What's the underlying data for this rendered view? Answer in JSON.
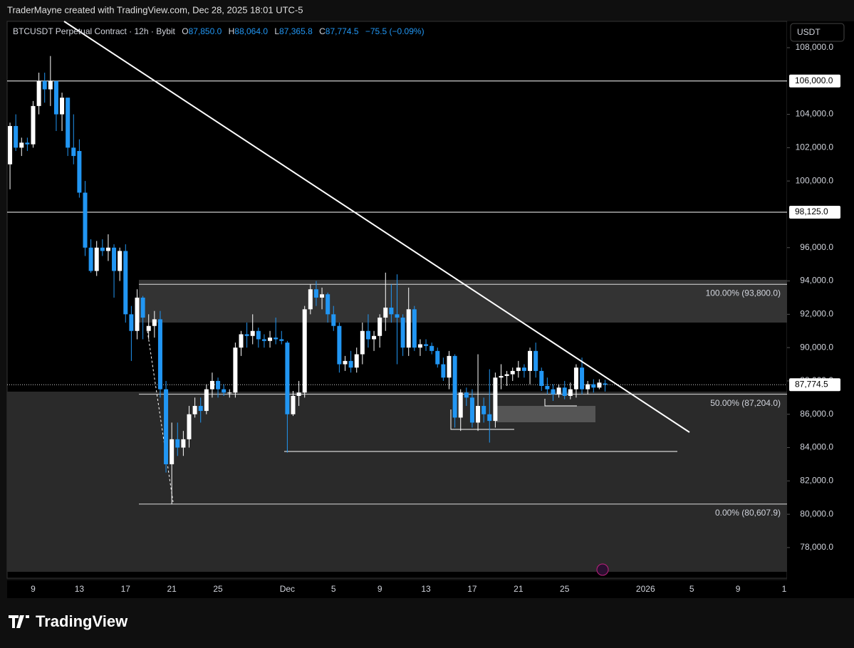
{
  "header": {
    "credit": "TraderMayne created with TradingView.com, Dec 28, 2025 18:01 UTC-5",
    "symbol": "BTCUSDT Perpetual Contract · 12h · Bybit",
    "legend": {
      "o_key": "O",
      "open": "87,850.0",
      "h_key": "H",
      "high": "88,064.0",
      "l_key": "L",
      "low": "87,365.8",
      "c_key": "C",
      "close": "87,774.5",
      "change": "−75.5 (−0.09%)"
    },
    "currency": "USDT"
  },
  "footer": {
    "brand": "TradingView"
  },
  "chart_data": {
    "type": "candlestick",
    "categories": [
      null,
      null,
      null,
      null,
      "9",
      null,
      null,
      null,
      null,
      null,
      null,
      null,
      "13",
      null,
      null,
      null,
      null,
      null,
      null,
      null,
      "17",
      null,
      null,
      null,
      null,
      null,
      null,
      null,
      "21",
      null,
      null,
      null,
      null,
      null,
      null,
      null,
      "25",
      null,
      null,
      null,
      null,
      null,
      null,
      null,
      null,
      null,
      null,
      null,
      "Dec",
      null,
      null,
      null,
      null,
      null,
      null,
      null,
      "5",
      null,
      null,
      null,
      null,
      null,
      null,
      null,
      "9",
      null,
      null,
      null,
      null,
      null,
      null,
      null,
      "13",
      null,
      null,
      null,
      null,
      null,
      null,
      null,
      "17",
      null,
      null,
      null,
      null,
      null,
      null,
      null,
      "21",
      null,
      null,
      null,
      null,
      null,
      null,
      null,
      "25",
      null,
      null,
      null,
      null,
      null,
      null,
      null,
      null,
      null,
      null,
      null,
      null,
      null,
      "2026",
      null,
      null,
      null,
      null,
      null,
      null,
      null,
      "5",
      null,
      null,
      null,
      null,
      null,
      null,
      null,
      "9",
      null,
      null,
      null,
      null,
      null,
      null,
      null,
      "1"
    ],
    "open": [
      101000,
      103300,
      102000,
      102300,
      102200,
      104500,
      106000,
      105500,
      106000,
      104000,
      105000,
      102000,
      101800,
      99300,
      96000,
      94600,
      96000,
      95800,
      96000,
      94600,
      95800,
      92000,
      91000,
      93000,
      91000,
      91300,
      91700,
      87500,
      83000,
      84500,
      84000,
      84500,
      86000,
      86500,
      86200,
      87500,
      88000,
      87500,
      87300,
      87300,
      90000,
      90800,
      90700,
      91000,
      90500,
      90400,
      90600,
      90500,
      90300,
      86000,
      87100,
      87300,
      92300,
      93500,
      93000,
      93200,
      92000,
      91300,
      89000,
      89200,
      88800,
      89600,
      91000,
      90500,
      90700,
      91800,
      92400,
      92000,
      91800,
      90000,
      92300,
      90000,
      90200,
      90100,
      89800,
      89000,
      88200,
      89500,
      85800,
      87300,
      87000,
      85500,
      86500,
      86000,
      85600,
      88200,
      88300,
      88400,
      88600,
      88800,
      88600,
      89800,
      88600,
      87700,
      87500,
      87200,
      87600,
      87100,
      87500,
      88800,
      87500,
      87800,
      87600,
      87850,
      null,
      null,
      null,
      null,
      null,
      null,
      null,
      null,
      null,
      null,
      null,
      null,
      null,
      null,
      null,
      null,
      null,
      null,
      null,
      null,
      null,
      null,
      null,
      null,
      null,
      null,
      null,
      null,
      null,
      null,
      null
    ],
    "high": [
      103500,
      104000,
      102600,
      102600,
      104800,
      106500,
      106500,
      107500,
      106000,
      105300,
      105000,
      104000,
      102500,
      100000,
      96500,
      96400,
      96500,
      96800,
      96200,
      96000,
      96200,
      92500,
      93500,
      93100,
      92000,
      92200,
      92200,
      88000,
      85500,
      85500,
      85000,
      86500,
      87000,
      87000,
      87800,
      88500,
      88200,
      87800,
      87500,
      90300,
      91000,
      91500,
      92000,
      91200,
      90800,
      91000,
      91800,
      91000,
      90400,
      87400,
      88000,
      92500,
      93800,
      94000,
      93600,
      93300,
      92500,
      91500,
      89500,
      89800,
      90000,
      91500,
      92000,
      91000,
      92000,
      94500,
      93800,
      94400,
      92000,
      93600,
      92500,
      90500,
      90500,
      90300,
      90000,
      89400,
      89800,
      89600,
      87500,
      87600,
      87500,
      89600,
      87000,
      88700,
      88500,
      89000,
      88600,
      88800,
      89200,
      89000,
      90000,
      90300,
      88800,
      88200,
      87800,
      87800,
      88000,
      87900,
      89000,
      89400,
      88000,
      88100,
      88100,
      88064,
      null,
      null,
      null,
      null,
      null,
      null,
      null,
      null,
      null,
      null,
      null,
      null,
      null,
      null,
      null,
      null,
      null,
      null,
      null,
      null,
      null,
      null,
      null,
      null,
      null,
      null,
      null,
      null,
      null,
      null,
      null
    ],
    "low": [
      99500,
      101800,
      101500,
      101800,
      102000,
      104000,
      104700,
      104500,
      103000,
      103000,
      101500,
      101000,
      99000,
      95500,
      94500,
      94300,
      95500,
      95200,
      93000,
      94000,
      91500,
      89200,
      90500,
      90500,
      90500,
      90600,
      87000,
      82500,
      80600,
      83500,
      83500,
      84000,
      85800,
      85500,
      86000,
      87000,
      87000,
      87100,
      87000,
      87000,
      89500,
      90000,
      90200,
      90000,
      90000,
      90000,
      90200,
      90200,
      83700,
      85900,
      86500,
      87000,
      92000,
      92500,
      92300,
      91500,
      91000,
      88500,
      88600,
      88500,
      88500,
      89000,
      90000,
      89800,
      90000,
      91000,
      91500,
      89000,
      89500,
      89500,
      89800,
      89500,
      89800,
      89600,
      88800,
      88000,
      87500,
      85200,
      85000,
      86500,
      85200,
      85000,
      85500,
      84300,
      85200,
      87500,
      87700,
      88000,
      88200,
      88200,
      87800,
      88200,
      87400,
      87200,
      86800,
      87000,
      86900,
      86900,
      87000,
      87200,
      87200,
      87300,
      87500,
      87365.8,
      null,
      null,
      null,
      null,
      null,
      null,
      null,
      null,
      null,
      null,
      null,
      null,
      null,
      null,
      null,
      null,
      null,
      null,
      null,
      null,
      null,
      null,
      null,
      null,
      null,
      null,
      null,
      null,
      null,
      null,
      null
    ],
    "close": [
      103300,
      102000,
      102300,
      102200,
      104500,
      106000,
      105500,
      106000,
      104000,
      105000,
      102000,
      101500,
      99300,
      96000,
      94600,
      96000,
      95800,
      96000,
      94600,
      95800,
      92000,
      91000,
      93000,
      91800,
      91300,
      91700,
      87500,
      83000,
      84500,
      84000,
      84500,
      86000,
      86500,
      86200,
      87500,
      88000,
      87500,
      87300,
      87300,
      90000,
      90800,
      90700,
      91000,
      90500,
      90400,
      90600,
      90500,
      90400,
      86000,
      87100,
      87300,
      92300,
      93500,
      93000,
      93200,
      92000,
      91300,
      89000,
      89200,
      88800,
      89600,
      91000,
      90500,
      90700,
      91800,
      92400,
      92000,
      91800,
      90000,
      92300,
      90000,
      90200,
      90100,
      89800,
      89000,
      88200,
      89500,
      85800,
      87300,
      87000,
      85500,
      86500,
      86000,
      85600,
      88200,
      88300,
      88400,
      88600,
      88800,
      88600,
      89800,
      88600,
      87700,
      87500,
      87200,
      87600,
      87100,
      87500,
      88800,
      87500,
      87800,
      87600,
      87900,
      87774.5,
      null,
      null,
      null,
      null,
      null,
      null,
      null,
      null,
      null,
      null,
      null,
      null,
      null,
      null,
      null,
      null,
      null,
      null,
      null,
      null,
      null,
      null,
      null,
      null,
      null,
      null,
      null,
      null,
      null,
      null,
      null
    ],
    "up_color": "#ffffff",
    "down_color": "#2196f3",
    "ylim": [
      76160,
      109580
    ],
    "yticks": [
      {
        "value": 78000,
        "label": "78,000.0"
      },
      {
        "value": 80000,
        "label": "80,000.0"
      },
      {
        "value": 82000,
        "label": "82,000.0"
      },
      {
        "value": 84000,
        "label": "84,000.0"
      },
      {
        "value": 86000,
        "label": "86,000.0"
      },
      {
        "value": 88000,
        "label": "88,000.0"
      },
      {
        "value": 90000,
        "label": "90,000.0"
      },
      {
        "value": 92000,
        "label": "92,000.0"
      },
      {
        "value": 94000,
        "label": "94,000.0"
      },
      {
        "value": 96000,
        "label": "96,000.0"
      },
      {
        "value": 100000,
        "label": "100,000.0"
      },
      {
        "value": 102000,
        "label": "102,000.0"
      },
      {
        "value": 104000,
        "label": "104,000.0"
      },
      {
        "value": 108000,
        "label": "108,000.0"
      }
    ],
    "levels": [
      {
        "value": 106000,
        "label": "106,000.0"
      },
      {
        "value": 98125,
        "label": "98,125.0"
      }
    ],
    "last_price": {
      "value": 87774.5,
      "label": "87,774.5"
    },
    "fib_levels": [
      {
        "value": 93800,
        "label": "100.00% (93,800.0)"
      },
      {
        "value": 87204,
        "label": "50.00% (87,204.0)"
      },
      {
        "value": 80607.9,
        "label": "0.00% (80,607.9)"
      }
    ]
  }
}
